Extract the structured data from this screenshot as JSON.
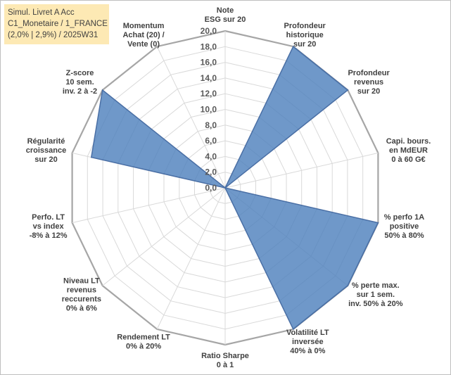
{
  "title_box": {
    "line1": "Simul. Livret A Acc",
    "line2": "C1_Monetaire / 1_FRANCE",
    "line3": "(2,0% | 2,9%) / 2025W31"
  },
  "chart_data": {
    "type": "radar",
    "rmax": 20,
    "tick_step": 2,
    "ticks": [
      "0,0",
      "2,0",
      "4,0",
      "6,0",
      "8,0",
      "10,0",
      "12,0",
      "14,0",
      "16,0",
      "18,0",
      "20,0"
    ],
    "axes": [
      [
        "Note",
        "ESG sur 20"
      ],
      [
        "Profondeur",
        "historique",
        "sur 20"
      ],
      [
        "Profondeur",
        "revenus",
        "sur 20"
      ],
      [
        "Capi. bours.",
        "en MdEUR",
        "0 à 60 G€"
      ],
      [
        "% perfo 1A",
        "positive",
        "50% à 80%"
      ],
      [
        "% perte max.",
        "sur 1 sem.",
        "inv. 50% à 20%"
      ],
      [
        "Volatilité LT",
        "inversée",
        "40% à 0%"
      ],
      [
        "Ratio Sharpe",
        "0 à 1"
      ],
      [
        "Rendement LT",
        "0% à 20%"
      ],
      [
        "Niveau LT",
        "revenus",
        "reccurents",
        "0% à 6%"
      ],
      [
        "Perfo. LT",
        "vs index",
        "-8% à 12%"
      ],
      [
        "Régularité",
        "croissance",
        "sur 20"
      ],
      [
        "Z-score",
        "10 sem.",
        "inv. 2 à -2"
      ],
      [
        "Momentum",
        "Achat (20) /",
        "Vente (0)"
      ]
    ],
    "series": [
      {
        "values": [
          0,
          20,
          20,
          0,
          20,
          20,
          20,
          0,
          0,
          0,
          0,
          17.5,
          20,
          0
        ],
        "color": "#4f81bd"
      }
    ],
    "grid": true,
    "legend": "none"
  }
}
